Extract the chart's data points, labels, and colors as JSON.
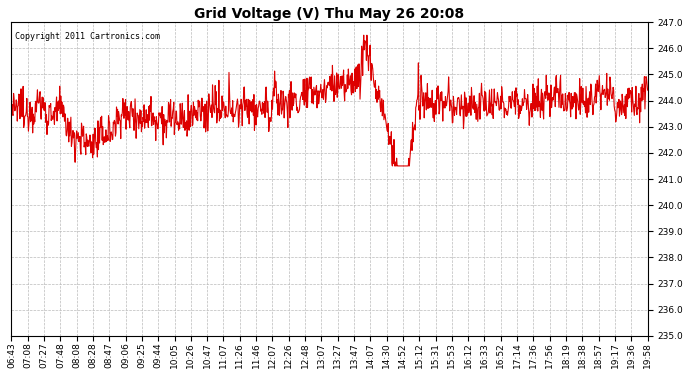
{
  "title": "Grid Voltage (V) Thu May 26 20:08",
  "copyright_text": "Copyright 2011 Cartronics.com",
  "line_color": "#dd0000",
  "background_color": "#ffffff",
  "plot_background": "#ffffff",
  "grid_color": "#bbbbbb",
  "grid_style": "--",
  "ylim": [
    235.0,
    247.0
  ],
  "yticks": [
    235.0,
    236.0,
    237.0,
    238.0,
    239.0,
    240.0,
    241.0,
    242.0,
    243.0,
    244.0,
    245.0,
    246.0,
    247.0
  ],
  "xtick_labels": [
    "06:43",
    "07:08",
    "07:27",
    "07:48",
    "08:08",
    "08:28",
    "08:47",
    "09:06",
    "09:25",
    "09:44",
    "10:05",
    "10:26",
    "10:47",
    "11:07",
    "11:26",
    "11:46",
    "12:07",
    "12:26",
    "12:48",
    "13:07",
    "13:27",
    "13:47",
    "14:07",
    "14:30",
    "14:52",
    "15:12",
    "15:31",
    "15:53",
    "16:12",
    "16:33",
    "16:52",
    "17:14",
    "17:36",
    "17:56",
    "18:19",
    "18:38",
    "18:57",
    "19:17",
    "19:36",
    "19:58"
  ],
  "line_width": 0.8,
  "title_fontsize": 10,
  "tick_fontsize": 6.5,
  "copyright_fontsize": 6,
  "seed": 12345,
  "n_points": 1200
}
